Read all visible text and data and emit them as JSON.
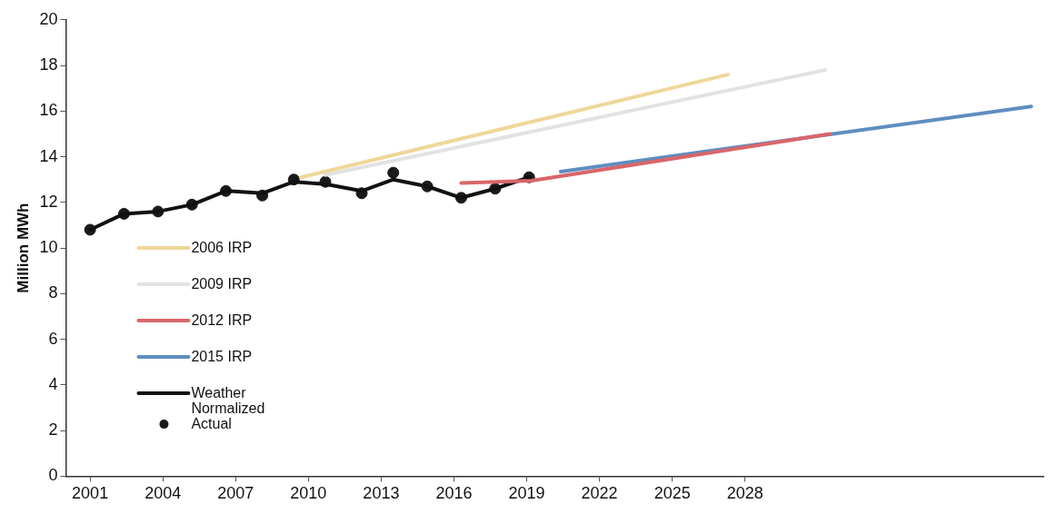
{
  "chart_data": {
    "type": "line",
    "ylabel": "Million MWh",
    "xlim": [
      2000,
      2040.3
    ],
    "xticks": [
      2001,
      2004,
      2007,
      2010,
      2013,
      2016,
      2019,
      2022,
      2025,
      2028
    ],
    "ylim": [
      0,
      20
    ],
    "yticks": [
      0,
      2,
      4,
      6,
      8,
      10,
      12,
      14,
      16,
      18,
      20
    ],
    "grid": false,
    "legend": "bottom left",
    "line_style": "solid",
    "series": [
      {
        "name": "2006 IRP",
        "color": "#efd79a",
        "x": [
          2009.7,
          2027.3
        ],
        "values": [
          13.1,
          17.6
        ],
        "marker": "none"
      },
      {
        "name": "2009 IRP",
        "color": "#e2e2e2",
        "x": [
          2010.7,
          2031.3
        ],
        "values": [
          13.2,
          17.8
        ],
        "marker": "none"
      },
      {
        "name": "2012 IRP",
        "color": "#d9666a",
        "x": [
          2016.3,
          2019.2,
          2031.5
        ],
        "values": [
          12.85,
          12.95,
          15.0
        ],
        "marker": "none"
      },
      {
        "name": "2015 IRP",
        "color": "#5f8dc0",
        "x": [
          2020.4,
          2039.8
        ],
        "values": [
          13.35,
          16.2
        ],
        "marker": "none"
      },
      {
        "name": "Weather Normalized",
        "color": "#111111",
        "x": [
          2001,
          2002.4,
          2003.8,
          2005.2,
          2006.6,
          2008.1,
          2009.4,
          2010.7,
          2012.2,
          2013.5,
          2014.9,
          2016.3,
          2017.7,
          2019.1
        ],
        "values": [
          10.8,
          11.5,
          11.6,
          11.9,
          12.5,
          12.4,
          12.9,
          12.8,
          12.5,
          13.0,
          12.7,
          12.2,
          12.6,
          13.1
        ],
        "marker": "none"
      },
      {
        "name": "Actual",
        "type": "scatter",
        "color": "#1a1a1a",
        "x": [
          2001,
          2002.4,
          2003.8,
          2005.2,
          2006.6,
          2008.1,
          2009.4,
          2010.7,
          2012.2,
          2013.5,
          2014.9,
          2016.3,
          2017.7,
          2019.1
        ],
        "values": [
          10.8,
          11.5,
          11.6,
          11.9,
          12.5,
          12.3,
          13.0,
          12.9,
          12.4,
          13.3,
          12.7,
          12.2,
          12.6,
          13.1
        ],
        "marker": "circle"
      }
    ]
  }
}
